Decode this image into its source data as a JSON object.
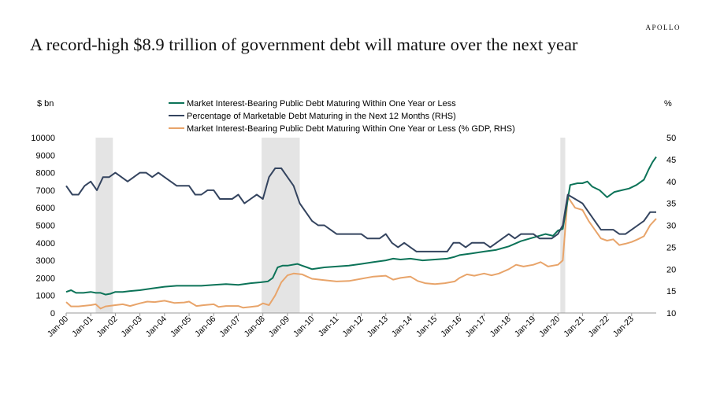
{
  "header": {
    "brand": "APOLLO",
    "title": "A record-high $8.9 trillion of government debt will mature over the next year"
  },
  "colors": {
    "green": "#0c7358",
    "navy": "#34445f",
    "orange": "#e8a46a",
    "recession": "#e4e4e4",
    "axis": "#9a9a9a"
  },
  "chart_data": {
    "type": "line",
    "ylabel_left": "$ bn",
    "ylabel_right": "%",
    "ylim_left": [
      0,
      10000
    ],
    "ylim_right": [
      10,
      50
    ],
    "yticks_left": [
      "0",
      "1000",
      "2000",
      "3000",
      "4000",
      "5000",
      "6000",
      "7000",
      "8000",
      "9000",
      "10000"
    ],
    "yticks_right": [
      "10",
      "15",
      "20",
      "25",
      "30",
      "35",
      "40",
      "45",
      "50"
    ],
    "xlim": [
      2000.0,
      2024.0
    ],
    "xticks": [
      "Jan-00",
      "Jan-01",
      "Jan-02",
      "Jan-03",
      "Jan-04",
      "Jan-05",
      "Jan-06",
      "Jan-07",
      "Jan-08",
      "Jan-09",
      "Jan-10",
      "Jan-11",
      "Jan-12",
      "Jan-13",
      "Jan-14",
      "Jan-15",
      "Jan-16",
      "Jan-17",
      "Jan-18",
      "Jan-19",
      "Jan-20",
      "Jan-21",
      "Jan-22",
      "Jan-23"
    ],
    "recessions": [
      [
        2001.2,
        2001.9
      ],
      [
        2007.95,
        2009.5
      ],
      [
        2020.1,
        2020.3
      ]
    ],
    "legend": [
      "Market Interest-Bearing Public Debt Maturing Within One Year or Less",
      "Percentage of Marketable Debt Maturing in the Next 12 Months (RHS)",
      "Market Interest-Bearing Public Debt Maturing Within One Year or Less (% GDP, RHS)"
    ],
    "series": [
      {
        "name": "Market Interest-Bearing Public Debt Maturing Within One Year or Less",
        "axis": "left",
        "points": [
          [
            2000.0,
            1200
          ],
          [
            2000.2,
            1300
          ],
          [
            2000.4,
            1150
          ],
          [
            2000.7,
            1150
          ],
          [
            2001.0,
            1200
          ],
          [
            2001.2,
            1150
          ],
          [
            2001.4,
            1150
          ],
          [
            2001.6,
            1050
          ],
          [
            2001.8,
            1100
          ],
          [
            2002.0,
            1200
          ],
          [
            2002.3,
            1200
          ],
          [
            2002.6,
            1250
          ],
          [
            2003.0,
            1300
          ],
          [
            2003.5,
            1400
          ],
          [
            2004.0,
            1500
          ],
          [
            2004.5,
            1550
          ],
          [
            2005.0,
            1550
          ],
          [
            2005.5,
            1550
          ],
          [
            2006.0,
            1600
          ],
          [
            2006.5,
            1650
          ],
          [
            2007.0,
            1600
          ],
          [
            2007.5,
            1700
          ],
          [
            2007.9,
            1750
          ],
          [
            2008.2,
            1800
          ],
          [
            2008.4,
            2000
          ],
          [
            2008.6,
            2600
          ],
          [
            2008.8,
            2700
          ],
          [
            2009.0,
            2700
          ],
          [
            2009.4,
            2800
          ],
          [
            2009.8,
            2600
          ],
          [
            2010.0,
            2500
          ],
          [
            2010.5,
            2600
          ],
          [
            2011.0,
            2650
          ],
          [
            2011.5,
            2700
          ],
          [
            2012.0,
            2800
          ],
          [
            2012.5,
            2900
          ],
          [
            2013.0,
            3000
          ],
          [
            2013.3,
            3100
          ],
          [
            2013.6,
            3050
          ],
          [
            2014.0,
            3100
          ],
          [
            2014.5,
            3000
          ],
          [
            2015.0,
            3050
          ],
          [
            2015.5,
            3100
          ],
          [
            2015.8,
            3200
          ],
          [
            2016.0,
            3300
          ],
          [
            2016.5,
            3400
          ],
          [
            2017.0,
            3500
          ],
          [
            2017.5,
            3600
          ],
          [
            2018.0,
            3800
          ],
          [
            2018.5,
            4100
          ],
          [
            2019.0,
            4300
          ],
          [
            2019.5,
            4500
          ],
          [
            2019.8,
            4400
          ],
          [
            2020.0,
            4700
          ],
          [
            2020.2,
            4800
          ],
          [
            2020.3,
            5600
          ],
          [
            2020.5,
            7300
          ],
          [
            2020.8,
            7400
          ],
          [
            2021.0,
            7400
          ],
          [
            2021.2,
            7500
          ],
          [
            2021.4,
            7200
          ],
          [
            2021.7,
            7000
          ],
          [
            2022.0,
            6600
          ],
          [
            2022.3,
            6900
          ],
          [
            2022.6,
            7000
          ],
          [
            2022.9,
            7100
          ],
          [
            2023.2,
            7300
          ],
          [
            2023.5,
            7600
          ],
          [
            2023.7,
            8200
          ],
          [
            2023.85,
            8600
          ],
          [
            2024.0,
            8900
          ]
        ]
      },
      {
        "name": "Percentage of Marketable Debt Maturing in the Next 12 Months (RHS)",
        "axis": "right",
        "points": [
          [
            2000.0,
            39
          ],
          [
            2000.25,
            37
          ],
          [
            2000.5,
            37
          ],
          [
            2000.75,
            39
          ],
          [
            2001.0,
            40
          ],
          [
            2001.25,
            38
          ],
          [
            2001.5,
            41
          ],
          [
            2001.75,
            41
          ],
          [
            2002.0,
            42
          ],
          [
            2002.5,
            40
          ],
          [
            2003.0,
            42
          ],
          [
            2003.25,
            42
          ],
          [
            2003.5,
            41
          ],
          [
            2003.75,
            42
          ],
          [
            2004.0,
            41
          ],
          [
            2004.5,
            39
          ],
          [
            2004.75,
            39
          ],
          [
            2005.0,
            39
          ],
          [
            2005.25,
            37
          ],
          [
            2005.5,
            37
          ],
          [
            2005.75,
            38
          ],
          [
            2006.0,
            38
          ],
          [
            2006.25,
            36
          ],
          [
            2006.5,
            36
          ],
          [
            2006.75,
            36
          ],
          [
            2007.0,
            37
          ],
          [
            2007.25,
            35
          ],
          [
            2007.5,
            36
          ],
          [
            2007.75,
            37
          ],
          [
            2008.0,
            36
          ],
          [
            2008.25,
            41
          ],
          [
            2008.5,
            43
          ],
          [
            2008.75,
            43
          ],
          [
            2009.0,
            41
          ],
          [
            2009.25,
            39
          ],
          [
            2009.5,
            35
          ],
          [
            2009.75,
            33
          ],
          [
            2010.0,
            31
          ],
          [
            2010.25,
            30
          ],
          [
            2010.5,
            30
          ],
          [
            2010.75,
            29
          ],
          [
            2011.0,
            28
          ],
          [
            2011.5,
            28
          ],
          [
            2012.0,
            28
          ],
          [
            2012.25,
            27
          ],
          [
            2012.5,
            27
          ],
          [
            2012.75,
            27
          ],
          [
            2013.0,
            28
          ],
          [
            2013.25,
            26
          ],
          [
            2013.5,
            25
          ],
          [
            2013.75,
            26
          ],
          [
            2014.0,
            25
          ],
          [
            2014.25,
            24
          ],
          [
            2014.5,
            24
          ],
          [
            2014.75,
            24
          ],
          [
            2015.0,
            24
          ],
          [
            2015.25,
            24
          ],
          [
            2015.5,
            24
          ],
          [
            2015.75,
            26
          ],
          [
            2016.0,
            26
          ],
          [
            2016.25,
            25
          ],
          [
            2016.5,
            26
          ],
          [
            2016.75,
            26
          ],
          [
            2017.0,
            26
          ],
          [
            2017.25,
            25
          ],
          [
            2017.5,
            26
          ],
          [
            2017.75,
            27
          ],
          [
            2018.0,
            28
          ],
          [
            2018.25,
            27
          ],
          [
            2018.5,
            28
          ],
          [
            2018.75,
            28
          ],
          [
            2019.0,
            28
          ],
          [
            2019.25,
            27
          ],
          [
            2019.5,
            27
          ],
          [
            2019.75,
            27
          ],
          [
            2020.0,
            28
          ],
          [
            2020.2,
            30
          ],
          [
            2020.4,
            37
          ],
          [
            2020.7,
            36
          ],
          [
            2021.0,
            35
          ],
          [
            2021.25,
            33
          ],
          [
            2021.5,
            31
          ],
          [
            2021.75,
            29
          ],
          [
            2022.0,
            29
          ],
          [
            2022.25,
            29
          ],
          [
            2022.5,
            28
          ],
          [
            2022.75,
            28
          ],
          [
            2023.0,
            29
          ],
          [
            2023.25,
            30
          ],
          [
            2023.5,
            31
          ],
          [
            2023.75,
            33
          ],
          [
            2024.0,
            33
          ]
        ]
      },
      {
        "name": "Market Interest-Bearing Public Debt Maturing Within One Year or Less (% GDP, RHS)",
        "axis": "right",
        "points": [
          [
            2000.0,
            12.5
          ],
          [
            2000.2,
            11.5
          ],
          [
            2000.5,
            11.5
          ],
          [
            2001.0,
            11.8
          ],
          [
            2001.2,
            12.0
          ],
          [
            2001.4,
            11.0
          ],
          [
            2001.6,
            11.5
          ],
          [
            2002.0,
            11.8
          ],
          [
            2002.3,
            12.0
          ],
          [
            2002.6,
            11.6
          ],
          [
            2003.0,
            12.2
          ],
          [
            2003.3,
            12.6
          ],
          [
            2003.6,
            12.5
          ],
          [
            2004.0,
            12.8
          ],
          [
            2004.4,
            12.3
          ],
          [
            2004.8,
            12.4
          ],
          [
            2005.0,
            12.6
          ],
          [
            2005.3,
            11.6
          ],
          [
            2005.6,
            11.8
          ],
          [
            2006.0,
            12.0
          ],
          [
            2006.2,
            11.4
          ],
          [
            2006.5,
            11.6
          ],
          [
            2007.0,
            11.6
          ],
          [
            2007.2,
            11.2
          ],
          [
            2007.5,
            11.4
          ],
          [
            2007.8,
            11.6
          ],
          [
            2008.0,
            12.2
          ],
          [
            2008.25,
            11.8
          ],
          [
            2008.5,
            14.0
          ],
          [
            2008.75,
            17.0
          ],
          [
            2009.0,
            18.6
          ],
          [
            2009.25,
            19.0
          ],
          [
            2009.6,
            18.8
          ],
          [
            2010.0,
            17.8
          ],
          [
            2010.5,
            17.5
          ],
          [
            2011.0,
            17.2
          ],
          [
            2011.5,
            17.3
          ],
          [
            2012.0,
            17.8
          ],
          [
            2012.5,
            18.3
          ],
          [
            2013.0,
            18.5
          ],
          [
            2013.3,
            17.6
          ],
          [
            2013.6,
            18.0
          ],
          [
            2014.0,
            18.3
          ],
          [
            2014.3,
            17.3
          ],
          [
            2014.6,
            16.8
          ],
          [
            2015.0,
            16.6
          ],
          [
            2015.4,
            16.8
          ],
          [
            2015.8,
            17.2
          ],
          [
            2016.0,
            18.0
          ],
          [
            2016.3,
            18.8
          ],
          [
            2016.6,
            18.5
          ],
          [
            2017.0,
            19.0
          ],
          [
            2017.3,
            18.6
          ],
          [
            2017.6,
            19.0
          ],
          [
            2018.0,
            20.0
          ],
          [
            2018.3,
            21.0
          ],
          [
            2018.6,
            20.6
          ],
          [
            2019.0,
            21.0
          ],
          [
            2019.3,
            21.6
          ],
          [
            2019.6,
            20.6
          ],
          [
            2020.0,
            21.0
          ],
          [
            2020.2,
            22.0
          ],
          [
            2020.4,
            36.5
          ],
          [
            2020.7,
            34.0
          ],
          [
            2021.0,
            33.5
          ],
          [
            2021.25,
            31.0
          ],
          [
            2021.5,
            29.0
          ],
          [
            2021.75,
            27.0
          ],
          [
            2022.0,
            26.5
          ],
          [
            2022.25,
            26.8
          ],
          [
            2022.5,
            25.5
          ],
          [
            2022.75,
            25.8
          ],
          [
            2023.0,
            26.2
          ],
          [
            2023.25,
            26.8
          ],
          [
            2023.5,
            27.5
          ],
          [
            2023.75,
            30.0
          ],
          [
            2024.0,
            31.5
          ]
        ]
      }
    ]
  }
}
